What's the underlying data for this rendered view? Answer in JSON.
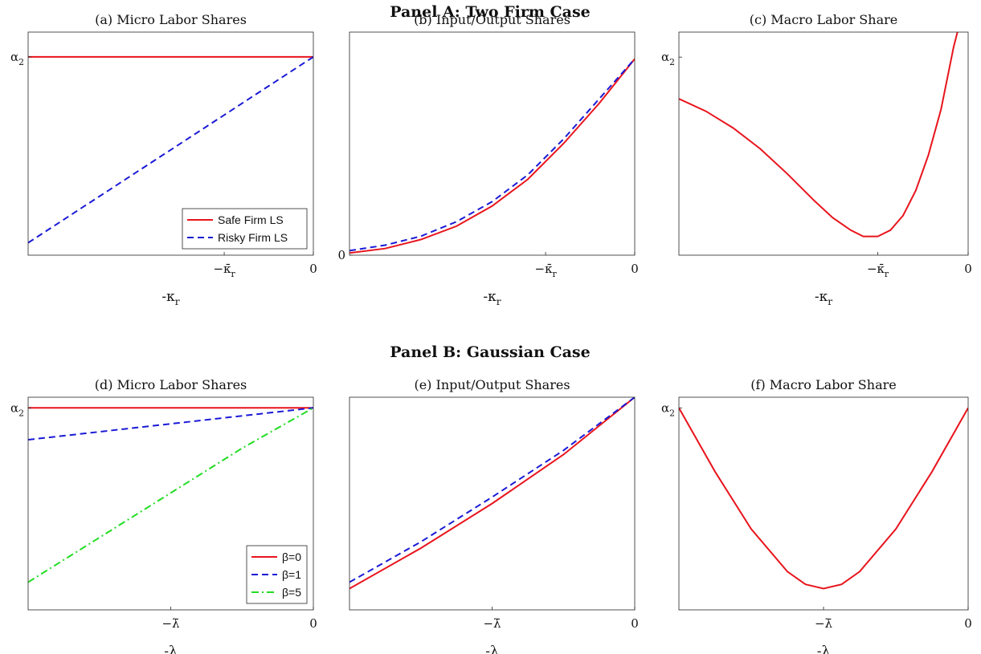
{
  "panels": {
    "a": "Panel A: Two Firm Case",
    "b": "Panel B: Gaussian Case"
  },
  "colors": {
    "red": "#e8141c",
    "blue": "#1a1ad6",
    "green": "#22dd22"
  },
  "chart_data": [
    {
      "id": "a",
      "type": "line",
      "title": "(a) Micro Labor Shares",
      "xlabel": "-κ",
      "xlabel_sub": "r",
      "xlim": [
        -1.6,
        0
      ],
      "ylim": [
        0.2,
        1.1
      ],
      "xticks": [
        {
          "v": -0.5,
          "label": "−κ̄",
          "sub": "r"
        },
        {
          "v": 0,
          "label": "0"
        }
      ],
      "yticks": [
        {
          "v": 1.0,
          "label": "α",
          "sub": "2"
        }
      ],
      "legend": {
        "entries": [
          "Safe Firm LS",
          "Risky Firm LS"
        ]
      },
      "series": [
        {
          "name": "Safe Firm LS",
          "color": "red",
          "dash": "solid",
          "x": [
            -1.6,
            0
          ],
          "y": [
            1.0,
            1.0
          ]
        },
        {
          "name": "Risky Firm LS",
          "color": "blue",
          "dash": "dashed",
          "x": [
            -1.6,
            0
          ],
          "y": [
            0.25,
            1.0
          ]
        }
      ]
    },
    {
      "id": "b",
      "type": "line",
      "title": "(b) Input/Output Shares",
      "xlabel": "-κ",
      "xlabel_sub": "r",
      "xlim": [
        -1.6,
        0
      ],
      "ylim": [
        0,
        1.0
      ],
      "xticks": [
        {
          "v": -0.5,
          "label": "−κ̄",
          "sub": "r"
        },
        {
          "v": 0,
          "label": "0"
        }
      ],
      "yticks": [
        {
          "v": 0,
          "label": "0"
        }
      ],
      "series": [
        {
          "name": "",
          "color": "red",
          "dash": "solid",
          "x": [
            -1.6,
            -1.4,
            -1.2,
            -1.0,
            -0.8,
            -0.6,
            -0.4,
            -0.2,
            0
          ],
          "y": [
            0.01,
            0.03,
            0.07,
            0.13,
            0.22,
            0.34,
            0.5,
            0.68,
            0.88
          ]
        },
        {
          "name": "",
          "color": "blue",
          "dash": "dashed",
          "x": [
            -1.6,
            -1.4,
            -1.2,
            -1.0,
            -0.8,
            -0.6,
            -0.4,
            -0.2,
            0
          ],
          "y": [
            0.02,
            0.045,
            0.085,
            0.15,
            0.24,
            0.36,
            0.52,
            0.7,
            0.88
          ]
        }
      ]
    },
    {
      "id": "c",
      "type": "line",
      "title": "(c) Macro Labor Share",
      "xlabel": "-κ",
      "xlabel_sub": "r",
      "xlim": [
        -1.6,
        0
      ],
      "ylim": [
        0.0,
        1.07
      ],
      "xticks": [
        {
          "v": -0.5,
          "label": "−κ̄",
          "sub": "r"
        },
        {
          "v": 0,
          "label": "0"
        }
      ],
      "yticks": [
        {
          "v": 0.95,
          "label": "α",
          "sub": "2"
        }
      ],
      "series": [
        {
          "name": "",
          "color": "red",
          "dash": "solid",
          "x": [
            -1.6,
            -1.45,
            -1.3,
            -1.15,
            -1.0,
            -0.85,
            -0.75,
            -0.65,
            -0.58,
            -0.5,
            -0.43,
            -0.36,
            -0.29,
            -0.22,
            -0.15,
            -0.08,
            0
          ],
          "y": [
            0.75,
            0.69,
            0.61,
            0.51,
            0.39,
            0.26,
            0.18,
            0.12,
            0.09,
            0.09,
            0.12,
            0.19,
            0.31,
            0.48,
            0.7,
            1.0,
            1.27
          ]
        }
      ]
    },
    {
      "id": "d",
      "type": "line",
      "title": "(d) Micro Labor Shares",
      "xlabel": "-λ",
      "xlim": [
        -1.6,
        0
      ],
      "ylim": [
        0.0,
        1.0
      ],
      "xticks": [
        {
          "v": -0.8,
          "label": "−λ̄"
        },
        {
          "v": 0,
          "label": "0"
        }
      ],
      "yticks": [
        {
          "v": 0.95,
          "label": "α",
          "sub": "2"
        }
      ],
      "legend": {
        "entries": [
          "β=0",
          "β=1",
          "β=5"
        ]
      },
      "series": [
        {
          "name": "β=0",
          "color": "red",
          "dash": "solid",
          "x": [
            -1.6,
            0
          ],
          "y": [
            0.95,
            0.95
          ]
        },
        {
          "name": "β=1",
          "color": "blue",
          "dash": "dashed",
          "x": [
            -1.6,
            0
          ],
          "y": [
            0.8,
            0.95
          ]
        },
        {
          "name": "β=5",
          "color": "green",
          "dash": "dashdot",
          "x": [
            -1.6,
            -1.2,
            -0.8,
            -0.4,
            0
          ],
          "y": [
            0.13,
            0.34,
            0.55,
            0.76,
            0.95
          ]
        }
      ]
    },
    {
      "id": "e",
      "type": "line",
      "title": "(e) Input/Output Shares",
      "xlabel": "-λ",
      "xlim": [
        -1.6,
        0
      ],
      "ylim": [
        0.0,
        1.0
      ],
      "xticks": [
        {
          "v": -0.8,
          "label": "−λ̄"
        },
        {
          "v": 0,
          "label": "0"
        }
      ],
      "yticks": [],
      "series": [
        {
          "name": "",
          "color": "red",
          "dash": "solid",
          "x": [
            -1.6,
            -1.2,
            -0.8,
            -0.4,
            0
          ],
          "y": [
            0.1,
            0.29,
            0.5,
            0.73,
            1.0
          ]
        },
        {
          "name": "",
          "color": "blue",
          "dash": "dashed",
          "x": [
            -1.6,
            -1.2,
            -0.8,
            -0.4,
            0
          ],
          "y": [
            0.13,
            0.32,
            0.53,
            0.75,
            1.0
          ]
        }
      ]
    },
    {
      "id": "f",
      "type": "line",
      "title": "(f) Macro Labor Share",
      "xlabel": "-λ",
      "xlim": [
        -1.6,
        0
      ],
      "ylim": [
        0.0,
        1.0
      ],
      "xticks": [
        {
          "v": -0.8,
          "label": "−λ̄"
        },
        {
          "v": 0,
          "label": "0"
        }
      ],
      "yticks": [
        {
          "v": 0.95,
          "label": "α",
          "sub": "2"
        }
      ],
      "series": [
        {
          "name": "",
          "color": "red",
          "dash": "solid",
          "x": [
            -1.6,
            -1.4,
            -1.2,
            -1.0,
            -0.9,
            -0.8,
            -0.7,
            -0.6,
            -0.4,
            -0.2,
            0
          ],
          "y": [
            0.95,
            0.65,
            0.38,
            0.18,
            0.12,
            0.1,
            0.12,
            0.18,
            0.38,
            0.65,
            0.95
          ]
        }
      ]
    }
  ]
}
